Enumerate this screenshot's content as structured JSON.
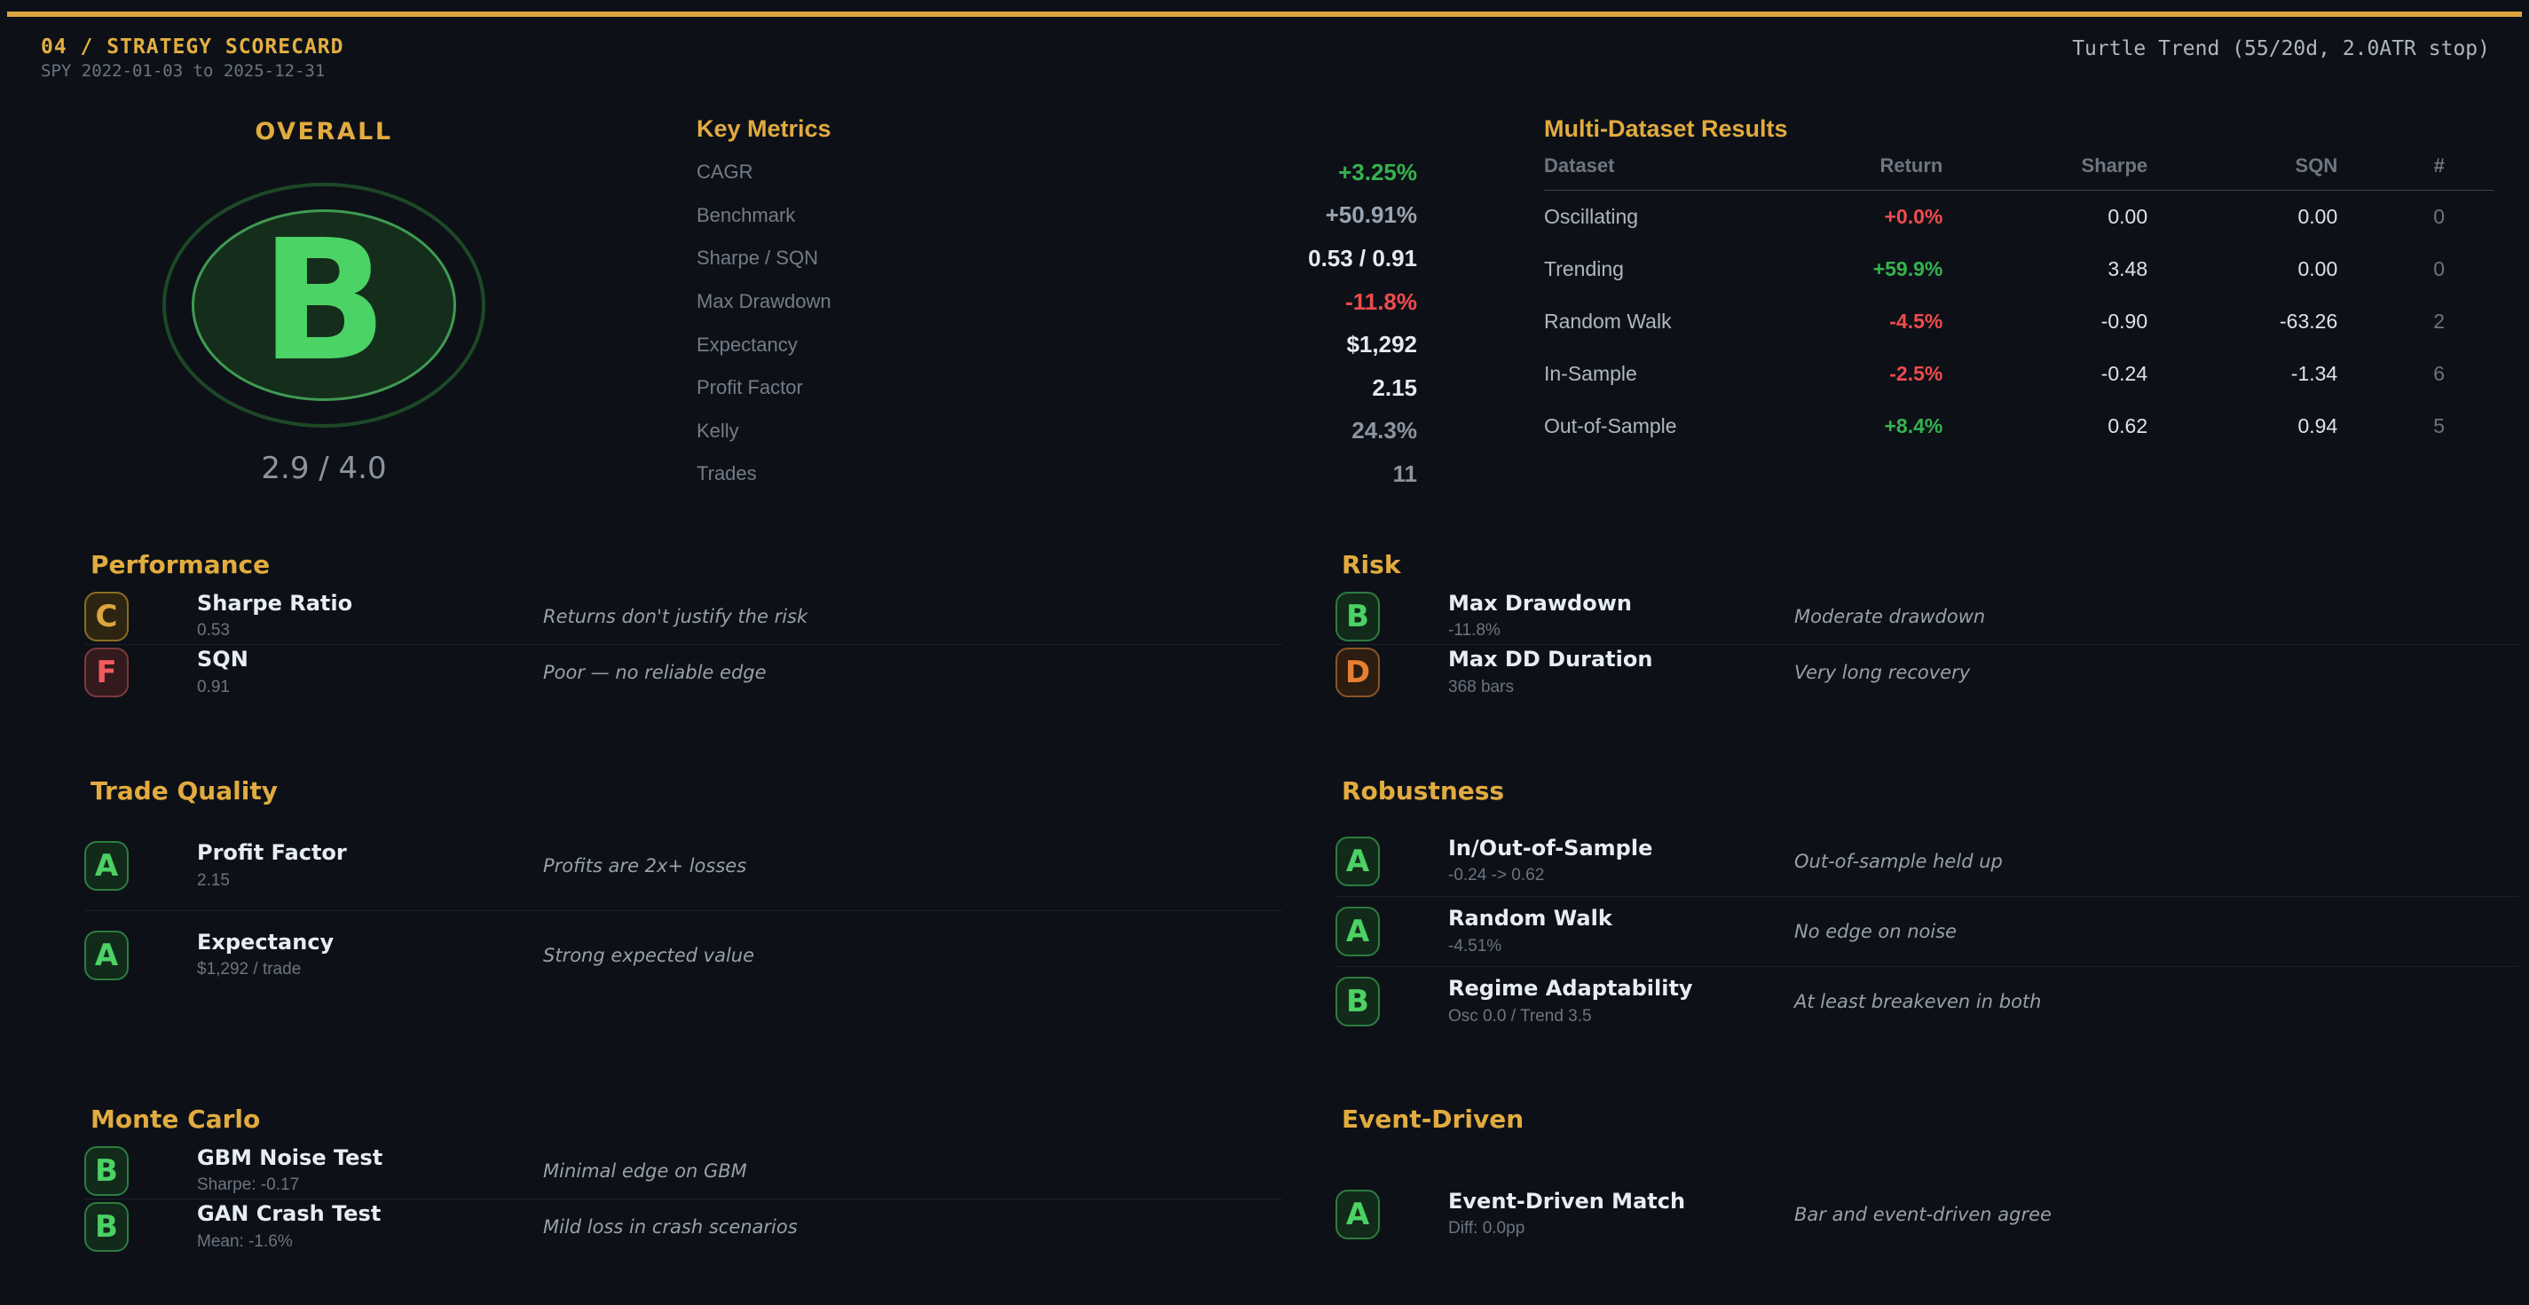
{
  "header": {
    "kicker": "04 / STRATEGY SCORECARD",
    "subtitle": "SPY 2022-01-03 to 2025-12-31",
    "strategy": "Turtle Trend (55/20d, 2.0ATR stop)"
  },
  "accent_color": "#d9a53f",
  "overall": {
    "label": "OVERALL",
    "grade": "B",
    "grade_color": "#4bd366",
    "score": "2.9 / 4.0"
  },
  "key_metrics": {
    "title": "Key Metrics",
    "rows": [
      {
        "label": "CAGR",
        "value": "+3.25%",
        "tone": "green"
      },
      {
        "label": "Benchmark",
        "value": "+50.91%",
        "tone": "muted"
      },
      {
        "label": "Sharpe / SQN",
        "value": "0.53  /  0.91",
        "tone": "white"
      },
      {
        "label": "Max Drawdown",
        "value": "-11.8%",
        "tone": "red"
      },
      {
        "label": "Expectancy",
        "value": "$1,292",
        "tone": "white"
      },
      {
        "label": "Profit Factor",
        "value": "2.15",
        "tone": "white"
      },
      {
        "label": "Kelly",
        "value": "24.3%",
        "tone": "dim"
      },
      {
        "label": "Trades",
        "value": "11",
        "tone": "dim"
      }
    ]
  },
  "multi_dataset": {
    "title": "Multi-Dataset Results",
    "columns": [
      "Dataset",
      "Return",
      "Sharpe",
      "SQN",
      "#"
    ],
    "rows": [
      {
        "dataset": "Oscillating",
        "return": "+0.0%",
        "return_tone": "red",
        "sharpe": "0.00",
        "sqn": "0.00",
        "count": "0"
      },
      {
        "dataset": "Trending",
        "return": "+59.9%",
        "return_tone": "green",
        "sharpe": "3.48",
        "sqn": "0.00",
        "count": "0"
      },
      {
        "dataset": "Random Walk",
        "return": "-4.5%",
        "return_tone": "red",
        "sharpe": "-0.90",
        "sqn": "-63.26",
        "count": "2"
      },
      {
        "dataset": "In-Sample",
        "return": "-2.5%",
        "return_tone": "red",
        "sharpe": "-0.24",
        "sqn": "-1.34",
        "count": "6"
      },
      {
        "dataset": "Out-of-Sample",
        "return": "+8.4%",
        "return_tone": "green",
        "sharpe": "0.62",
        "sqn": "0.94",
        "count": "5"
      }
    ]
  },
  "grade_palettes": {
    "green": {
      "fg": "#4bd164",
      "bg": "#122a1a",
      "border": "#2d7c40"
    },
    "amber": {
      "fg": "#dca63c",
      "bg": "#2d2511",
      "border": "#8a6c23"
    },
    "red": {
      "fg": "#f05c5e",
      "bg": "#321a1d",
      "border": "#7d393e"
    },
    "orange": {
      "fg": "#e67e33",
      "bg": "#2d1d10",
      "border": "#8a5426"
    }
  },
  "sections": [
    {
      "title": "Performance",
      "items": [
        {
          "grade": "C",
          "palette": "amber",
          "name": "Sharpe Ratio",
          "value": "0.53",
          "comment": "Returns don't justify the risk"
        },
        {
          "grade": "F",
          "palette": "red",
          "name": "SQN",
          "value": "0.91",
          "comment": "Poor — no reliable edge"
        }
      ]
    },
    {
      "title": "Risk",
      "items": [
        {
          "grade": "B",
          "palette": "green",
          "name": "Max Drawdown",
          "value": "-11.8%",
          "comment": "Moderate drawdown"
        },
        {
          "grade": "D",
          "palette": "orange",
          "name": "Max DD Duration",
          "value": "368 bars",
          "comment": "Very long recovery"
        }
      ]
    },
    {
      "title": "Trade Quality",
      "items": [
        {
          "grade": "A",
          "palette": "green",
          "name": "Profit Factor",
          "value": "2.15",
          "comment": "Profits are 2x+ losses"
        },
        {
          "grade": "A",
          "palette": "green",
          "name": "Expectancy",
          "value": "$1,292 / trade",
          "comment": "Strong expected value"
        }
      ]
    },
    {
      "title": "Robustness",
      "items": [
        {
          "grade": "A",
          "palette": "green",
          "name": "In/Out-of-Sample",
          "value": "-0.24 -> 0.62",
          "comment": "Out-of-sample held up"
        },
        {
          "grade": "A",
          "palette": "green",
          "name": "Random Walk",
          "value": "-4.51%",
          "comment": "No edge on noise"
        },
        {
          "grade": "B",
          "palette": "green",
          "name": "Regime Adaptability",
          "value": "Osc 0.0 / Trend 3.5",
          "comment": "At least breakeven in both"
        }
      ]
    },
    {
      "title": "Monte Carlo",
      "items": [
        {
          "grade": "B",
          "palette": "green",
          "name": "GBM Noise Test",
          "value": "Sharpe: -0.17",
          "comment": "Minimal edge on GBM"
        },
        {
          "grade": "B",
          "palette": "green",
          "name": "GAN Crash Test",
          "value": "Mean: -1.6%",
          "comment": "Mild loss in crash scenarios"
        }
      ]
    },
    {
      "title": "Event-Driven",
      "items": [
        {
          "grade": "A",
          "palette": "green",
          "name": "Event-Driven Match",
          "value": "Diff: 0.0pp",
          "comment": "Bar and event-driven agree"
        }
      ]
    }
  ]
}
